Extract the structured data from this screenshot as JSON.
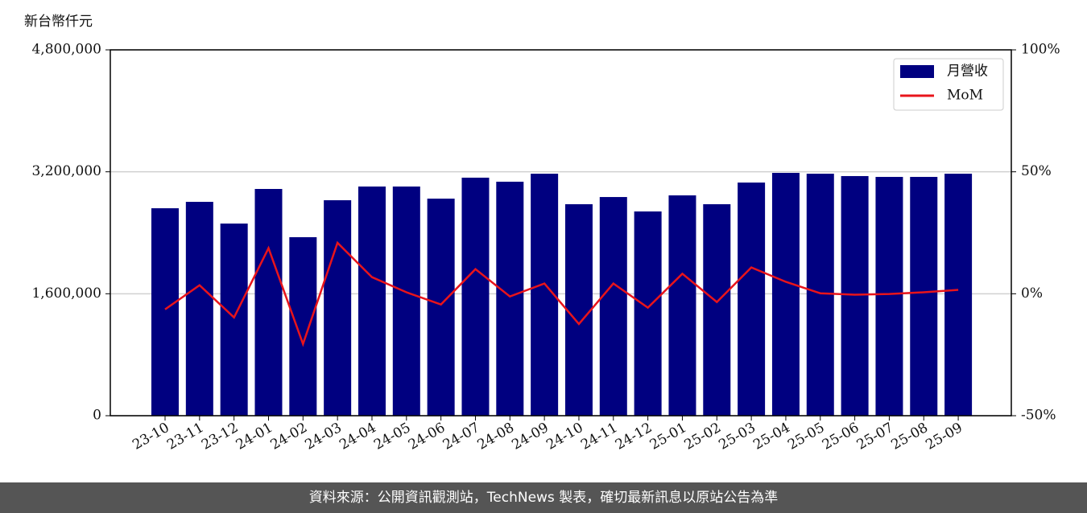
{
  "chart_data": {
    "type": "bar",
    "ylabel": "新台幣仟元",
    "categories": [
      "23-10",
      "23-11",
      "23-12",
      "24-01",
      "24-02",
      "24-03",
      "24-04",
      "24-05",
      "24-06",
      "24-07",
      "24-08",
      "24-09",
      "24-10",
      "24-11",
      "24-12",
      "25-01",
      "25-02",
      "25-03",
      "25-04",
      "25-05",
      "25-06",
      "25-07",
      "25-08",
      "25-09"
    ],
    "series": [
      {
        "name": "月營收",
        "type": "bar",
        "color": "#000080",
        "values": [
          2722000,
          2806000,
          2521000,
          2975000,
          2342000,
          2827000,
          3007000,
          3007000,
          2848000,
          3123000,
          3070000,
          3175000,
          2775000,
          2869000,
          2680000,
          2891000,
          2775000,
          3059000,
          3186000,
          3175000,
          3144000,
          3133000,
          3133000,
          3175000
        ]
      },
      {
        "name": "MoM",
        "type": "line",
        "axis": "y2",
        "color": "#e8141b",
        "values": [
          -6.4,
          3.5,
          -9.7,
          18.7,
          -20.6,
          20.9,
          6.8,
          0.6,
          -4.4,
          10.1,
          -1.1,
          4.2,
          -12.4,
          4.2,
          -5.7,
          8.2,
          -3.4,
          10.8,
          4.9,
          0.2,
          -0.4,
          -0.1,
          0.6,
          1.6
        ]
      }
    ],
    "ylim": [
      0,
      4800000
    ],
    "yticks": [
      0,
      {
        "value": 1600000,
        "label": "1,600,000"
      },
      {
        "value": 3200000,
        "label": "3,200,000"
      },
      {
        "value": 4800000,
        "label": "4,800,000"
      }
    ],
    "y2lim": [
      -50,
      100
    ],
    "y2ticks": [
      {
        "value": -50,
        "label": "-50%"
      },
      {
        "value": 0,
        "label": "0%"
      },
      {
        "value": 50,
        "label": "50%"
      },
      {
        "value": 100,
        "label": "100%"
      }
    ],
    "grid": true,
    "legend": "upper right"
  },
  "footer": "資料來源：公開資訊觀測站，TechNews 製表，確切最新訊息以原站公告為準"
}
